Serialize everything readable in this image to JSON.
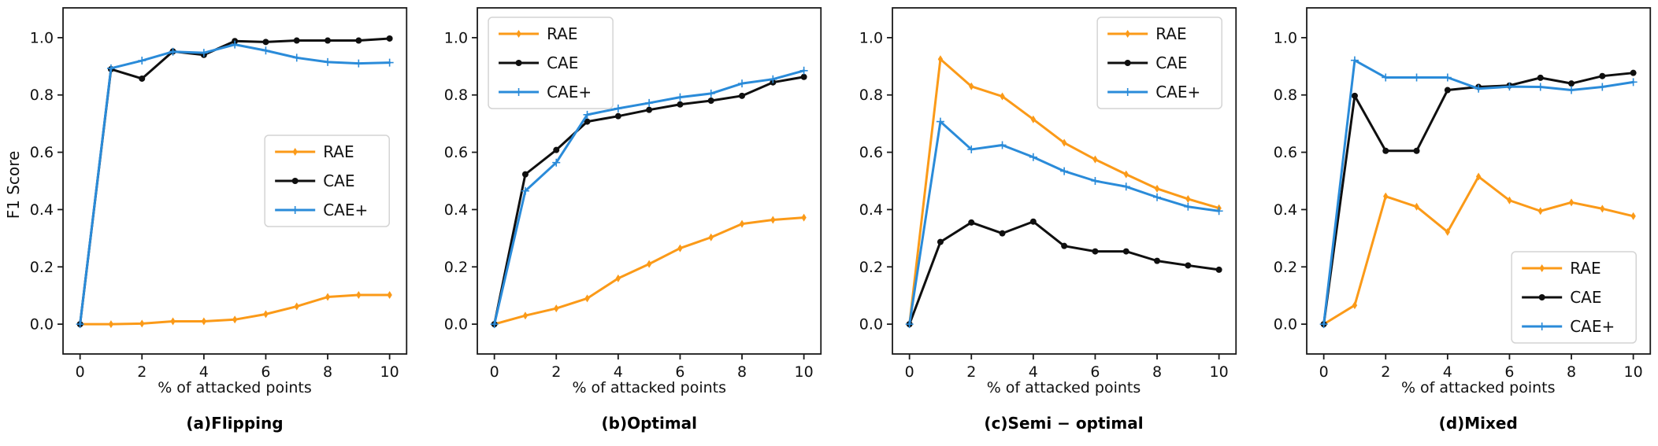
{
  "figure": {
    "ylabel": "F1 Score",
    "background": "#ffffff",
    "axis_color": "#1a1a1a",
    "y_tick_labels": [
      "0.0",
      "0.2",
      "0.4",
      "0.6",
      "0.8",
      "1.0"
    ],
    "x_tick_labels": [
      "0",
      "2",
      "4",
      "6",
      "8",
      "10"
    ]
  },
  "chart_data": [
    {
      "type": "line",
      "title": "(a)Flipping",
      "xlabel": "% of attacked points",
      "ylabel": "F1 Score",
      "x": [
        0,
        1,
        2,
        3,
        4,
        5,
        6,
        7,
        8,
        9,
        10
      ],
      "xlim": [
        -0.55,
        10.55
      ],
      "ylim": [
        -0.104,
        1.104
      ],
      "grid": false,
      "legend_loc": "center right",
      "series": [
        {
          "name": "RAE",
          "color": "#fb9a18",
          "marker": "diamond",
          "values": [
            0.0,
            0.0,
            0.002,
            0.01,
            0.01,
            0.016,
            0.035,
            0.062,
            0.095,
            0.102,
            0.102
          ]
        },
        {
          "name": "CAE",
          "color": "#0f0f0f",
          "marker": "circle",
          "values": [
            0.0,
            0.89,
            0.857,
            0.952,
            0.94,
            0.988,
            0.985,
            0.99,
            0.99,
            0.99,
            0.997
          ]
        },
        {
          "name": "CAE+",
          "color": "#2a8bd9",
          "marker": "plus",
          "values": [
            0.0,
            0.893,
            0.92,
            0.951,
            0.947,
            0.976,
            0.955,
            0.93,
            0.915,
            0.91,
            0.913
          ]
        }
      ]
    },
    {
      "type": "line",
      "title": "(b)Optimal",
      "xlabel": "% of attacked points",
      "ylabel": "",
      "x": [
        0,
        1,
        2,
        3,
        4,
        5,
        6,
        7,
        8,
        9,
        10
      ],
      "xlim": [
        -0.55,
        10.55
      ],
      "ylim": [
        -0.104,
        1.104
      ],
      "grid": false,
      "legend_loc": "upper left",
      "series": [
        {
          "name": "RAE",
          "color": "#fb9a18",
          "marker": "diamond",
          "values": [
            0.0,
            0.03,
            0.055,
            0.09,
            0.16,
            0.21,
            0.265,
            0.303,
            0.35,
            0.364,
            0.372
          ]
        },
        {
          "name": "CAE",
          "color": "#0f0f0f",
          "marker": "circle",
          "values": [
            0.0,
            0.523,
            0.608,
            0.707,
            0.726,
            0.748,
            0.767,
            0.78,
            0.797,
            0.844,
            0.863
          ]
        },
        {
          "name": "CAE+",
          "color": "#2a8bd9",
          "marker": "plus",
          "values": [
            0.0,
            0.465,
            0.564,
            0.731,
            0.753,
            0.772,
            0.792,
            0.805,
            0.84,
            0.855,
            0.885
          ]
        }
      ]
    },
    {
      "type": "line",
      "title": "(c)Semi − optimal",
      "xlabel": "% of attacked points",
      "ylabel": "",
      "x": [
        0,
        1,
        2,
        3,
        4,
        5,
        6,
        7,
        8,
        9,
        10
      ],
      "xlim": [
        -0.55,
        10.55
      ],
      "ylim": [
        -0.104,
        1.104
      ],
      "grid": false,
      "legend_loc": "upper right",
      "series": [
        {
          "name": "RAE",
          "color": "#fb9a18",
          "marker": "diamond",
          "values": [
            0.0,
            0.925,
            0.83,
            0.795,
            0.715,
            0.633,
            0.575,
            0.523,
            0.473,
            0.437,
            0.405
          ]
        },
        {
          "name": "CAE",
          "color": "#0f0f0f",
          "marker": "circle",
          "values": [
            0.0,
            0.287,
            0.355,
            0.317,
            0.358,
            0.273,
            0.254,
            0.254,
            0.221,
            0.205,
            0.19
          ]
        },
        {
          "name": "CAE+",
          "color": "#2a8bd9",
          "marker": "plus",
          "values": [
            0.0,
            0.707,
            0.61,
            0.625,
            0.583,
            0.534,
            0.5,
            0.48,
            0.443,
            0.41,
            0.395
          ]
        }
      ]
    },
    {
      "type": "line",
      "title": "(d)Mixed",
      "xlabel": "% of attacked points",
      "ylabel": "",
      "x": [
        0,
        1,
        2,
        3,
        4,
        5,
        6,
        7,
        8,
        9,
        10
      ],
      "xlim": [
        -0.55,
        10.55
      ],
      "ylim": [
        -0.104,
        1.104
      ],
      "grid": false,
      "legend_loc": "lower right",
      "series": [
        {
          "name": "RAE",
          "color": "#fb9a18",
          "marker": "diamond",
          "values": [
            0.0,
            0.066,
            0.446,
            0.41,
            0.322,
            0.515,
            0.432,
            0.395,
            0.425,
            0.403,
            0.377
          ]
        },
        {
          "name": "CAE",
          "color": "#0f0f0f",
          "marker": "circle",
          "values": [
            0.0,
            0.797,
            0.605,
            0.605,
            0.817,
            0.828,
            0.833,
            0.86,
            0.84,
            0.866,
            0.877
          ]
        },
        {
          "name": "CAE+",
          "color": "#2a8bd9",
          "marker": "plus",
          "values": [
            0.0,
            0.921,
            0.861,
            0.861,
            0.861,
            0.822,
            0.829,
            0.828,
            0.817,
            0.828,
            0.845
          ]
        }
      ]
    }
  ]
}
